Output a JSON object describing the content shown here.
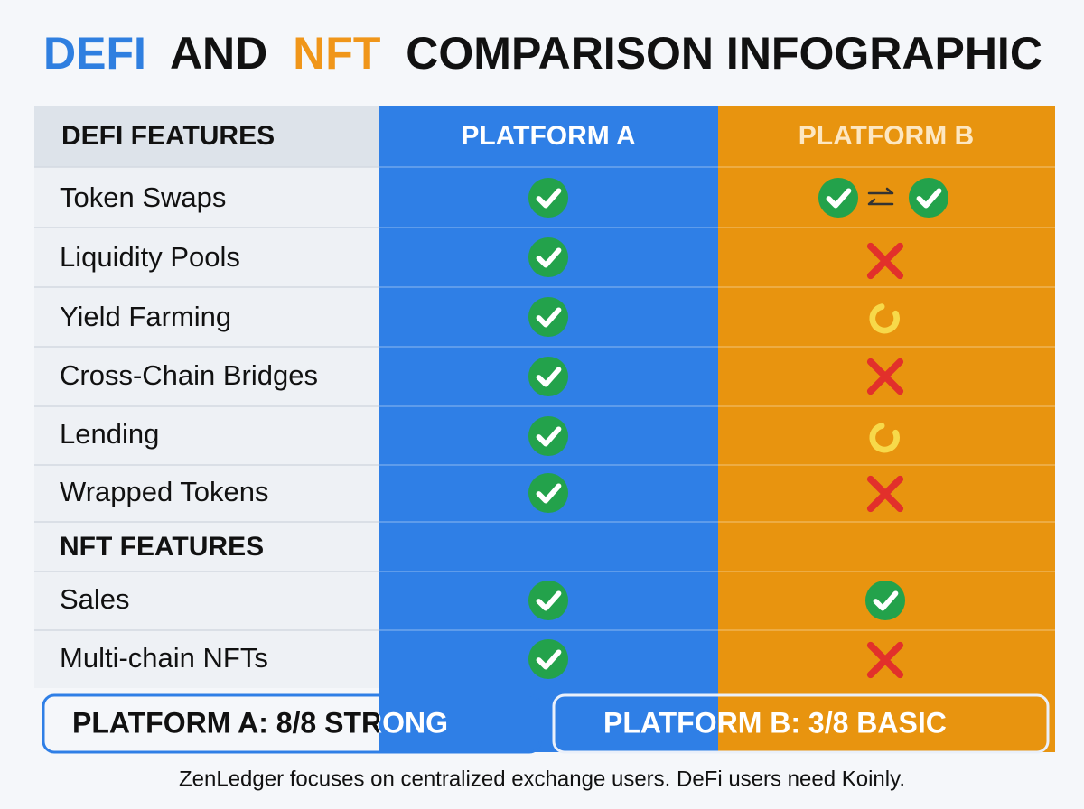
{
  "title_parts": [
    "DEFI",
    "AND",
    "NFT",
    "COMPARISON INFOGRAPHIC"
  ],
  "table": {
    "header": [
      "DEFI FEATURES",
      "PLATFORM A",
      "PLATFORM B"
    ],
    "defi_rows": [
      "Token Swaps",
      "Liquidity Pools",
      "Yield Farming",
      "Cross-Chain Bridges",
      "Lending",
      "Wrapped Tokens"
    ],
    "section": "NFT FEATURES",
    "nft_rows": [
      "Sales",
      "Multi-chain NFTs"
    ]
  },
  "summary": [
    "PLATFORM A: 8/8 STRONG",
    "PLATFORM B: 3/8 BASIC"
  ],
  "footer": "ZenLedger focuses on centralized exchange users. DeFi users need Koinly."
}
